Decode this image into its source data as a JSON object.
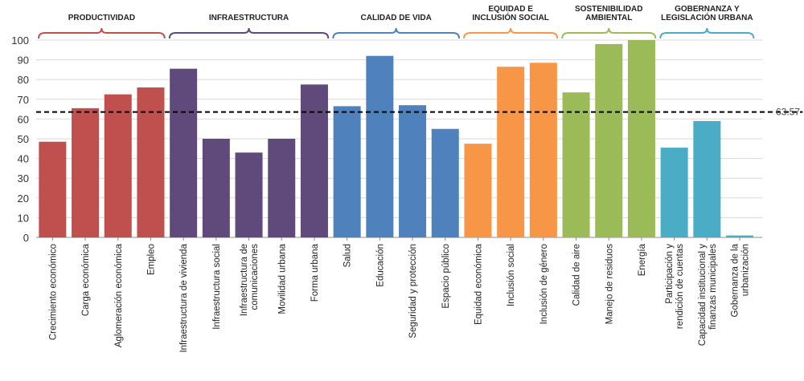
{
  "chart_data": {
    "type": "bar",
    "ylim": [
      0,
      100
    ],
    "yticks": [
      0,
      10,
      20,
      30,
      40,
      50,
      60,
      70,
      80,
      90,
      100
    ],
    "grid": true,
    "title": "",
    "xlabel": "",
    "ylabel": "",
    "categories": [
      "Crecimiento económico",
      "Carga económica",
      "Aglomeración económica",
      "Empleo",
      "Infraestructura de vivienda",
      "Infraestructura social",
      "Infraestructura de comunicaciones",
      "Movilidad urbana",
      "Forma urbana",
      "Salud",
      "Educación",
      "Seguridad y protección",
      "Espacio público",
      "Equidad económica",
      "Inclusión social",
      "Inclusión de género",
      "Calidad de aire",
      "Manejo de residuos",
      "Energía",
      "Participación y rendición de cuentas",
      "Capacidad institucional y finanzas municipales",
      "Gobernanza de la urbanización"
    ],
    "category_lines": [
      [
        "Crecimiento económico"
      ],
      [
        "Carga económica"
      ],
      [
        "Aglomeración económica"
      ],
      [
        "Empleo"
      ],
      [
        "Infraestructura de vivienda"
      ],
      [
        "Infraestructura social"
      ],
      [
        "Infraestructura de",
        "comunicaciones"
      ],
      [
        "Movilidad urbana"
      ],
      [
        "Forma urbana"
      ],
      [
        "Salud"
      ],
      [
        "Educación"
      ],
      [
        "Seguridad y protección"
      ],
      [
        "Espacio público"
      ],
      [
        "Equidad económica"
      ],
      [
        "Inclusión social"
      ],
      [
        "Inclusión de género"
      ],
      [
        "Calidad de aire"
      ],
      [
        "Manejo de residuos"
      ],
      [
        "Energía"
      ],
      [
        "Participación y",
        "rendición de cuentas"
      ],
      [
        "Capacidad institucional y",
        "finanzas municipales"
      ],
      [
        "Gobernanza de la",
        "urbanización"
      ]
    ],
    "values": [
      48.5,
      65.5,
      72.5,
      76,
      85.5,
      50,
      43,
      50,
      77.5,
      66.5,
      92,
      67,
      55,
      47.5,
      86.5,
      88.5,
      73.5,
      98,
      100,
      45.5,
      59,
      1
    ],
    "groups": [
      {
        "lines": [
          "PRODUCTIVIDAD"
        ],
        "start": 0,
        "end": 3,
        "color": "#c0504d"
      },
      {
        "lines": [
          "INFRAESTRUCTURA"
        ],
        "start": 4,
        "end": 8,
        "color": "#604a7b"
      },
      {
        "lines": [
          "CALIDAD DE VIDA"
        ],
        "start": 9,
        "end": 12,
        "color": "#4f81bd"
      },
      {
        "lines": [
          "EQUIDAD E",
          "INCLUSIÓN SOCIAL"
        ],
        "start": 13,
        "end": 15,
        "color": "#f79646"
      },
      {
        "lines": [
          "SOSTENIBILIDAD",
          "AMBIENTAL"
        ],
        "start": 16,
        "end": 18,
        "color": "#9bbb59"
      },
      {
        "lines": [
          "GOBERNANZA Y",
          "LEGISLACIÓN URBANA"
        ],
        "start": 19,
        "end": 21,
        "color": "#4bacc6"
      }
    ],
    "reference_line": {
      "value": 63.57,
      "label": "63.57",
      "style": "dashed",
      "color": "#000000"
    }
  }
}
